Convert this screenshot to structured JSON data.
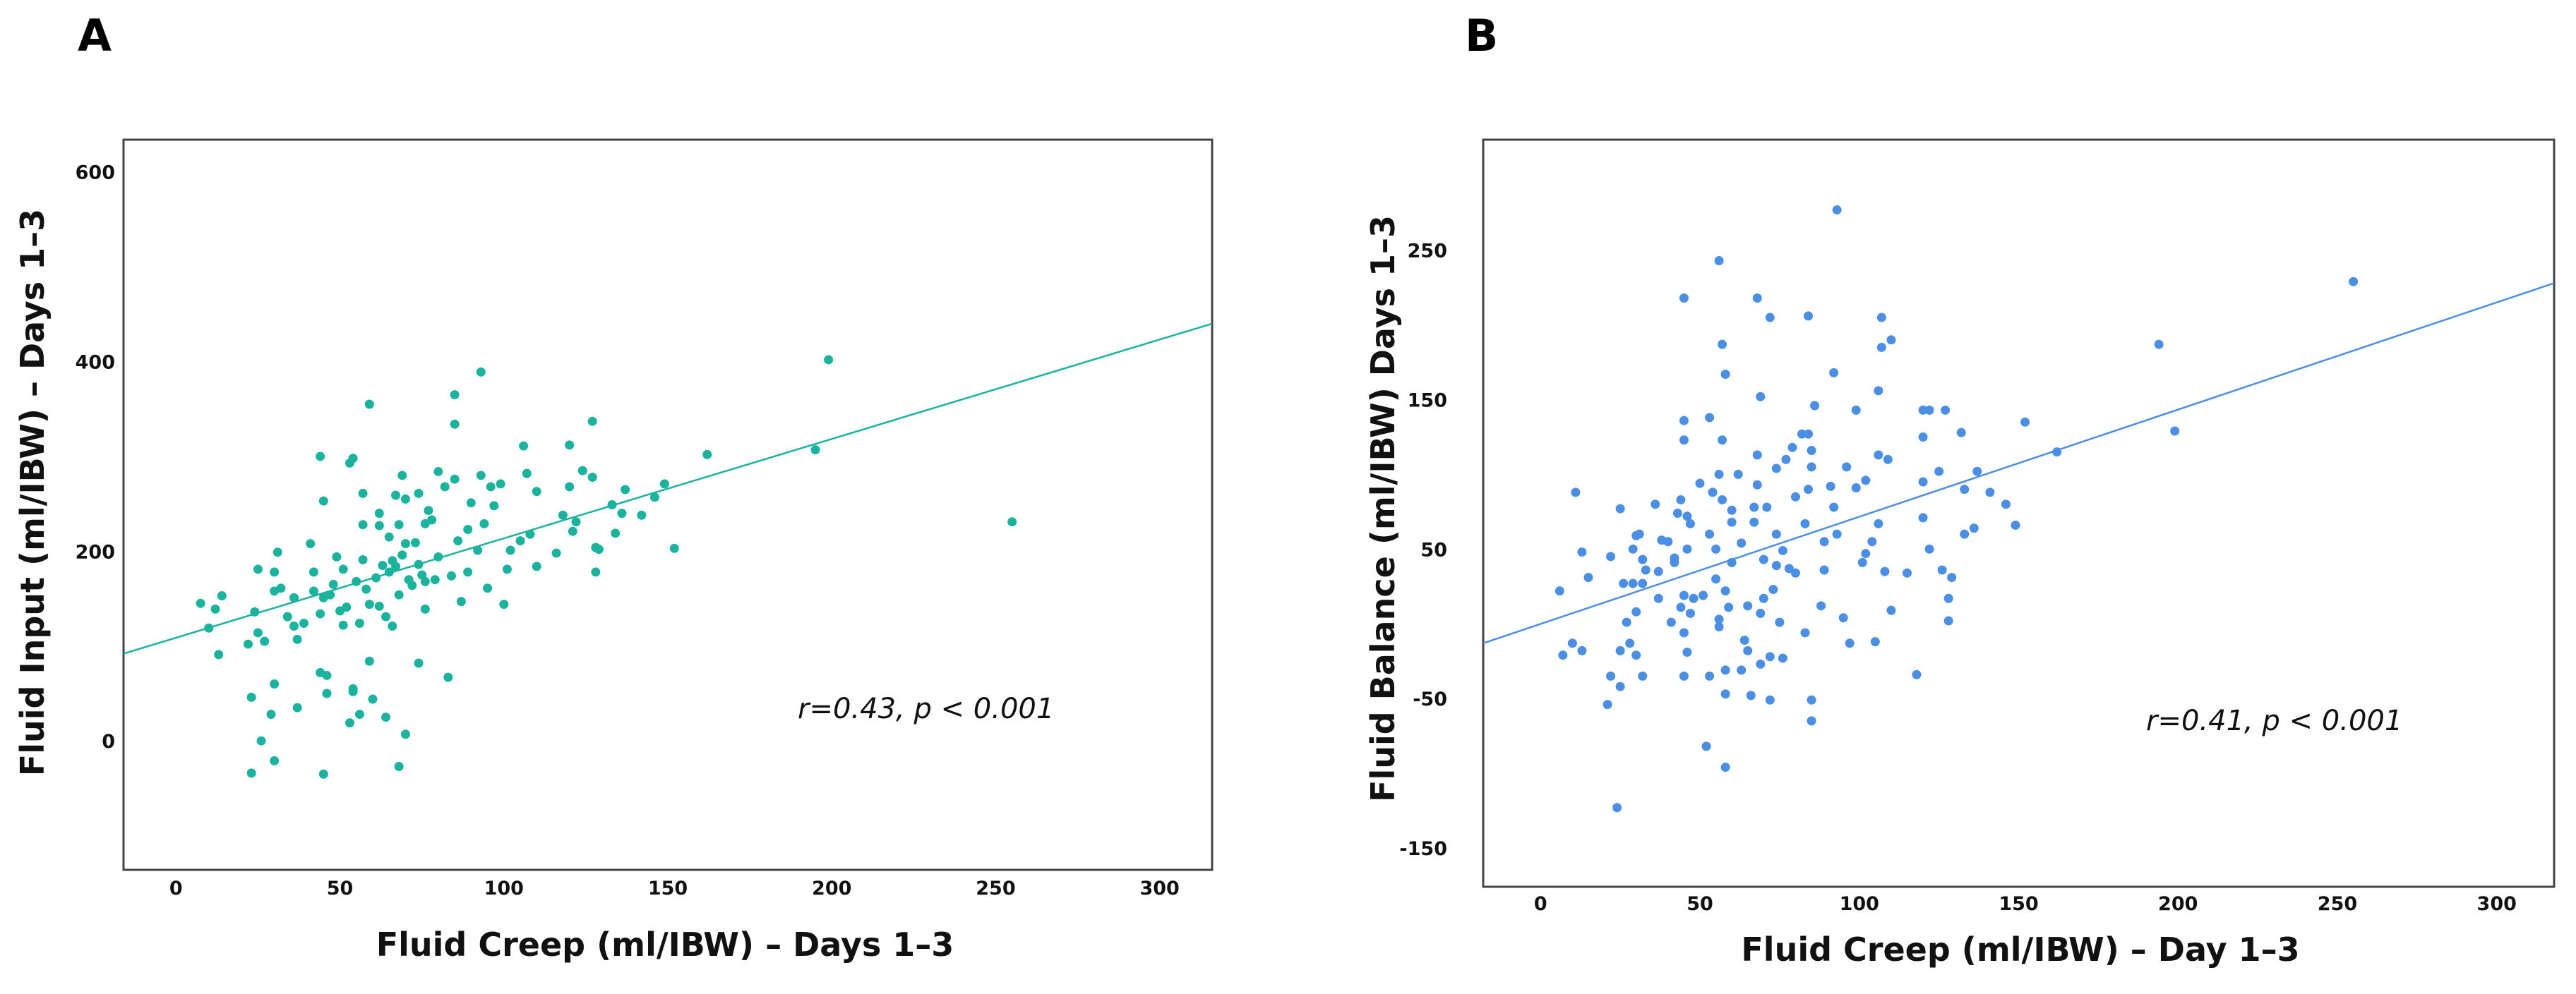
{
  "chart_data": [
    {
      "type": "scatter",
      "panel_label": "A",
      "xlabel": "Fluid Creep (ml/IBW) – Days 1–3",
      "ylabel": "Fluid Input (ml/IBW) – Days 1–3",
      "annotation": "r=0.43, p < 0.001",
      "xlim": [
        -16,
        316
      ],
      "ylim": [
        -136,
        634
      ],
      "xticks": [
        0,
        50,
        100,
        150,
        200,
        250,
        300
      ],
      "yticks": [
        0,
        200,
        400,
        600
      ],
      "grid": false,
      "color": "#1bb39d",
      "fit_line": {
        "x": [
          -16,
          316
        ],
        "y": [
          92,
          440
        ]
      },
      "points": [
        [
          7.5,
          145
        ],
        [
          10,
          119
        ],
        [
          12,
          139
        ],
        [
          14,
          153
        ],
        [
          13,
          91
        ],
        [
          22,
          102
        ],
        [
          24,
          136
        ],
        [
          25,
          114
        ],
        [
          25,
          181
        ],
        [
          27,
          105
        ],
        [
          23,
          46
        ],
        [
          26,
          0
        ],
        [
          23,
          -34
        ],
        [
          30,
          -21
        ],
        [
          30,
          60
        ],
        [
          29,
          28
        ],
        [
          31,
          199
        ],
        [
          30,
          178
        ],
        [
          32,
          161
        ],
        [
          30,
          158
        ],
        [
          34,
          131
        ],
        [
          36,
          121
        ],
        [
          36,
          151
        ],
        [
          37,
          107
        ],
        [
          37,
          35
        ],
        [
          39,
          124
        ],
        [
          42,
          178
        ],
        [
          41,
          208
        ],
        [
          42,
          158
        ],
        [
          44,
          134
        ],
        [
          45,
          151
        ],
        [
          44,
          300
        ],
        [
          45,
          253
        ],
        [
          46,
          50
        ],
        [
          45,
          -35
        ],
        [
          44,
          72
        ],
        [
          46,
          69
        ],
        [
          49,
          194
        ],
        [
          50,
          137
        ],
        [
          47,
          154
        ],
        [
          51,
          181
        ],
        [
          52,
          141
        ],
        [
          51,
          122
        ],
        [
          53,
          293
        ],
        [
          54,
          298
        ],
        [
          54,
          52
        ],
        [
          53,
          19
        ],
        [
          54,
          55
        ],
        [
          56,
          28
        ],
        [
          55,
          168
        ],
        [
          56,
          124
        ],
        [
          57,
          191
        ],
        [
          57,
          261
        ],
        [
          57,
          228
        ],
        [
          59,
          144
        ],
        [
          59,
          84
        ],
        [
          59,
          355
        ],
        [
          60,
          44
        ],
        [
          61,
          172
        ],
        [
          62,
          240
        ],
        [
          62,
          142
        ],
        [
          62,
          227
        ],
        [
          64,
          131
        ],
        [
          64,
          25
        ],
        [
          65,
          178
        ],
        [
          65,
          215
        ],
        [
          66,
          121
        ],
        [
          67,
          259
        ],
        [
          67,
          184
        ],
        [
          68,
          154
        ],
        [
          68,
          -27
        ],
        [
          69,
          280
        ],
        [
          68,
          228
        ],
        [
          70,
          208
        ],
        [
          70,
          7
        ],
        [
          70,
          255
        ],
        [
          72,
          164
        ],
        [
          73,
          209
        ],
        [
          74,
          82
        ],
        [
          74,
          261
        ],
        [
          74,
          186
        ],
        [
          76,
          229
        ],
        [
          76,
          168
        ],
        [
          77,
          243
        ],
        [
          78,
          233
        ],
        [
          80,
          284
        ],
        [
          80,
          194
        ],
        [
          82,
          268
        ],
        [
          83,
          67
        ],
        [
          84,
          174
        ],
        [
          85,
          334
        ],
        [
          85,
          365
        ],
        [
          85,
          276
        ],
        [
          86,
          211
        ],
        [
          87,
          147
        ],
        [
          90,
          251
        ],
        [
          89,
          223
        ],
        [
          89,
          178
        ],
        [
          92,
          201
        ],
        [
          93,
          389
        ],
        [
          93,
          280
        ],
        [
          94,
          229
        ],
        [
          95,
          161
        ],
        [
          96,
          268
        ],
        [
          97,
          248
        ],
        [
          99,
          271
        ],
        [
          100,
          144
        ],
        [
          101,
          181
        ],
        [
          102,
          201
        ],
        [
          105,
          211
        ],
        [
          106,
          311
        ],
        [
          107,
          282
        ],
        [
          108,
          218
        ],
        [
          110,
          184
        ],
        [
          110,
          263
        ],
        [
          116,
          198
        ],
        [
          118,
          238
        ],
        [
          120,
          312
        ],
        [
          120,
          268
        ],
        [
          121,
          221
        ],
        [
          122,
          231
        ],
        [
          124,
          285
        ],
        [
          127,
          337
        ],
        [
          127,
          278
        ],
        [
          128,
          178
        ],
        [
          128,
          204
        ],
        [
          129,
          202
        ],
        [
          133,
          249
        ],
        [
          134,
          219
        ],
        [
          136,
          240
        ],
        [
          137,
          265
        ],
        [
          142,
          238
        ],
        [
          146,
          257
        ],
        [
          149,
          271
        ],
        [
          152,
          203
        ],
        [
          162,
          302
        ],
        [
          195,
          307
        ],
        [
          199,
          402
        ],
        [
          255,
          231
        ],
        [
          76,
          139
        ],
        [
          71,
          170
        ],
        [
          66,
          190
        ],
        [
          58,
          160
        ],
        [
          48,
          165
        ],
        [
          69,
          196
        ],
        [
          75,
          175
        ],
        [
          79,
          170
        ],
        [
          63,
          185
        ]
      ]
    },
    {
      "type": "scatter",
      "panel_label": "B",
      "xlabel": "Fluid Creep (ml/IBW) – Day 1–3",
      "ylabel": "Fluid Balance (ml/IBW) Days 1–3",
      "annotation": "r=0.41, p < 0.001",
      "xlim": [
        -18,
        318
      ],
      "ylim": [
        -176,
        324
      ],
      "xticks": [
        0,
        50,
        100,
        150,
        200,
        250,
        300
      ],
      "yticks": [
        -150,
        -50,
        50,
        150,
        250
      ],
      "grid": false,
      "color": "#4a8fe3",
      "fit_line": {
        "x": [
          -18,
          318
        ],
        "y": [
          -13,
          228
        ]
      },
      "points": [
        [
          6,
          22
        ],
        [
          7,
          -21
        ],
        [
          10,
          -13
        ],
        [
          11,
          88
        ],
        [
          13,
          -18
        ],
        [
          13,
          48
        ],
        [
          15,
          31
        ],
        [
          21,
          -54
        ],
        [
          22,
          -35
        ],
        [
          22,
          45
        ],
        [
          24,
          -123
        ],
        [
          25,
          -18
        ],
        [
          25,
          -42
        ],
        [
          25,
          77
        ],
        [
          26,
          27
        ],
        [
          27,
          1
        ],
        [
          28,
          -13
        ],
        [
          29,
          27
        ],
        [
          29,
          50
        ],
        [
          30,
          -21
        ],
        [
          30,
          59
        ],
        [
          30,
          8
        ],
        [
          31,
          60
        ],
        [
          32,
          43
        ],
        [
          32,
          -35
        ],
        [
          32,
          27
        ],
        [
          33,
          36
        ],
        [
          36,
          80
        ],
        [
          37,
          17
        ],
        [
          37,
          35
        ],
        [
          38,
          56
        ],
        [
          40,
          55
        ],
        [
          41,
          1
        ],
        [
          42,
          41
        ],
        [
          42,
          44
        ],
        [
          43,
          74
        ],
        [
          44,
          83
        ],
        [
          44,
          11
        ],
        [
          45,
          -6
        ],
        [
          45,
          123
        ],
        [
          45,
          218
        ],
        [
          45,
          19
        ],
        [
          45,
          136
        ],
        [
          45,
          -35
        ],
        [
          46,
          50
        ],
        [
          46,
          72
        ],
        [
          47,
          67
        ],
        [
          47,
          7
        ],
        [
          46,
          -19
        ],
        [
          48,
          17
        ],
        [
          50,
          94
        ],
        [
          51,
          19
        ],
        [
          53,
          138
        ],
        [
          53,
          60
        ],
        [
          53,
          -35
        ],
        [
          52,
          -82
        ],
        [
          54,
          88
        ],
        [
          55,
          50
        ],
        [
          55,
          30
        ],
        [
          56,
          3
        ],
        [
          56,
          100
        ],
        [
          56,
          243
        ],
        [
          56,
          -2
        ],
        [
          57,
          83
        ],
        [
          57,
          123
        ],
        [
          57,
          187
        ],
        [
          58,
          22
        ],
        [
          58,
          167
        ],
        [
          58,
          -31
        ],
        [
          58,
          -96
        ],
        [
          58,
          -47
        ],
        [
          59,
          11
        ],
        [
          60,
          76
        ],
        [
          60,
          41
        ],
        [
          60,
          68
        ],
        [
          62,
          100
        ],
        [
          63,
          -31
        ],
        [
          64,
          -11
        ],
        [
          63,
          54
        ],
        [
          65,
          -18
        ],
        [
          65,
          12
        ],
        [
          66,
          -48
        ],
        [
          67,
          68
        ],
        [
          67,
          78
        ],
        [
          68,
          218
        ],
        [
          68,
          93
        ],
        [
          68,
          113
        ],
        [
          69,
          -27
        ],
        [
          69,
          152
        ],
        [
          69,
          7
        ],
        [
          70,
          17
        ],
        [
          70,
          43
        ],
        [
          71,
          78
        ],
        [
          72,
          205
        ],
        [
          72,
          -22
        ],
        [
          72,
          -51
        ],
        [
          73,
          23
        ],
        [
          74,
          104
        ],
        [
          74,
          39
        ],
        [
          74,
          60
        ],
        [
          75,
          1
        ],
        [
          76,
          -23
        ],
        [
          76,
          49
        ],
        [
          77,
          110
        ],
        [
          78,
          37
        ],
        [
          79,
          118
        ],
        [
          80,
          85
        ],
        [
          80,
          34
        ],
        [
          82,
          127
        ],
        [
          83,
          67
        ],
        [
          83,
          -6
        ],
        [
          84,
          90
        ],
        [
          84,
          206
        ],
        [
          84,
          127
        ],
        [
          85,
          105
        ],
        [
          85,
          -51
        ],
        [
          85,
          -65
        ],
        [
          85,
          116
        ],
        [
          86,
          146
        ],
        [
          88,
          12
        ],
        [
          89,
          36
        ],
        [
          89,
          55
        ],
        [
          91,
          92
        ],
        [
          92,
          78
        ],
        [
          92,
          168
        ],
        [
          93,
          60
        ],
        [
          93,
          277
        ],
        [
          95,
          4
        ],
        [
          96,
          105
        ],
        [
          97,
          -13
        ],
        [
          99,
          143
        ],
        [
          99,
          91
        ],
        [
          101,
          41
        ],
        [
          102,
          96
        ],
        [
          102,
          47
        ],
        [
          104,
          55
        ],
        [
          105,
          -12
        ],
        [
          106,
          67
        ],
        [
          106,
          113
        ],
        [
          106,
          156
        ],
        [
          107,
          205
        ],
        [
          107,
          185
        ],
        [
          108,
          35
        ],
        [
          109,
          110
        ],
        [
          110,
          9
        ],
        [
          110,
          190
        ],
        [
          118,
          -34
        ],
        [
          115,
          34
        ],
        [
          120,
          71
        ],
        [
          120,
          95
        ],
        [
          120,
          125
        ],
        [
          120,
          143
        ],
        [
          122,
          50
        ],
        [
          122,
          143
        ],
        [
          125,
          102
        ],
        [
          126,
          36
        ],
        [
          127,
          143
        ],
        [
          128,
          17
        ],
        [
          128,
          2
        ],
        [
          129,
          31
        ],
        [
          132,
          128
        ],
        [
          133,
          90
        ],
        [
          133,
          60
        ],
        [
          136,
          64
        ],
        [
          137,
          102
        ],
        [
          141,
          88
        ],
        [
          146,
          80
        ],
        [
          149,
          66
        ],
        [
          152,
          135
        ],
        [
          162,
          115
        ],
        [
          194,
          187
        ],
        [
          199,
          129
        ],
        [
          255,
          229
        ]
      ]
    }
  ]
}
